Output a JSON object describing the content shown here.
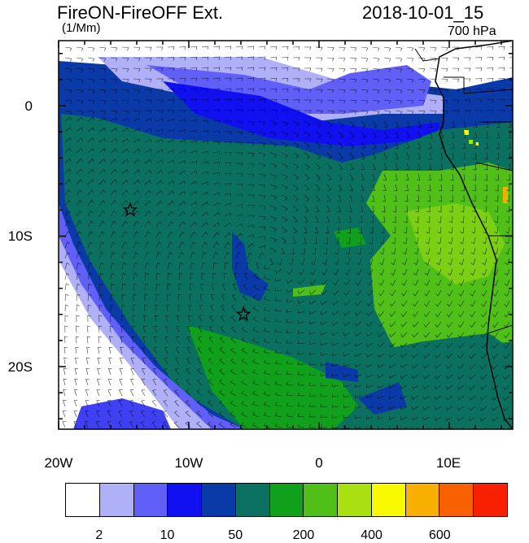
{
  "title": "FireON-FireOFF Ext.",
  "units": "(1/Mm)",
  "timestamp": "2018-10-01_15",
  "level": "700 hPa",
  "lon_labels": [
    "20W",
    "10W",
    "0",
    "10E"
  ],
  "lat_labels": [
    "0",
    "10S",
    "20S"
  ],
  "colorbar": {
    "colors": [
      "#ffffff",
      "#b0b0f8",
      "#6060f8",
      "#1010f0",
      "#0a3aa8",
      "#0a7060",
      "#10a01c",
      "#50c018",
      "#a8e010",
      "#f8f800",
      "#f8b000",
      "#f86000",
      "#f82000"
    ],
    "labels": [
      "2",
      "10",
      "50",
      "200",
      "400",
      "600"
    ]
  },
  "markers": [
    {
      "name": "star",
      "lon": -14.5,
      "lat": -8
    },
    {
      "name": "star",
      "lon": -5.8,
      "lat": -16
    }
  ]
}
